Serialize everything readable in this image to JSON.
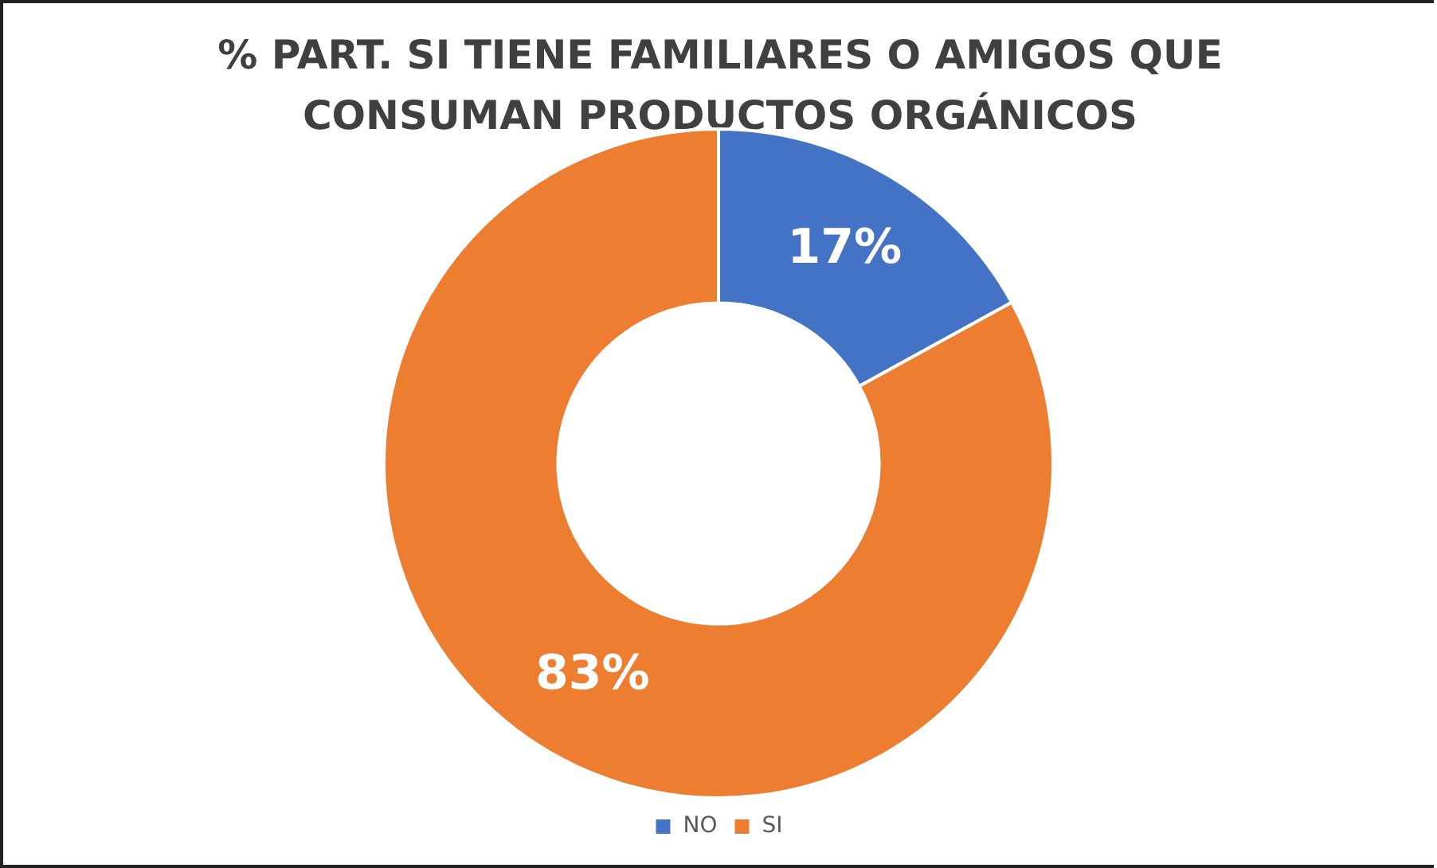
{
  "chart_data": {
    "type": "donut",
    "title": "% PART. SI TIENE FAMILIARES O AMIGOS QUE CONSUMAN PRODUCTOS ORGÁNICOS",
    "categories": [
      "NO",
      "SI"
    ],
    "values": [
      17,
      83
    ],
    "colors": [
      "#4472c4",
      "#ed7d31"
    ],
    "value_labels": [
      "17%",
      "83%"
    ],
    "legend": "bottom"
  }
}
